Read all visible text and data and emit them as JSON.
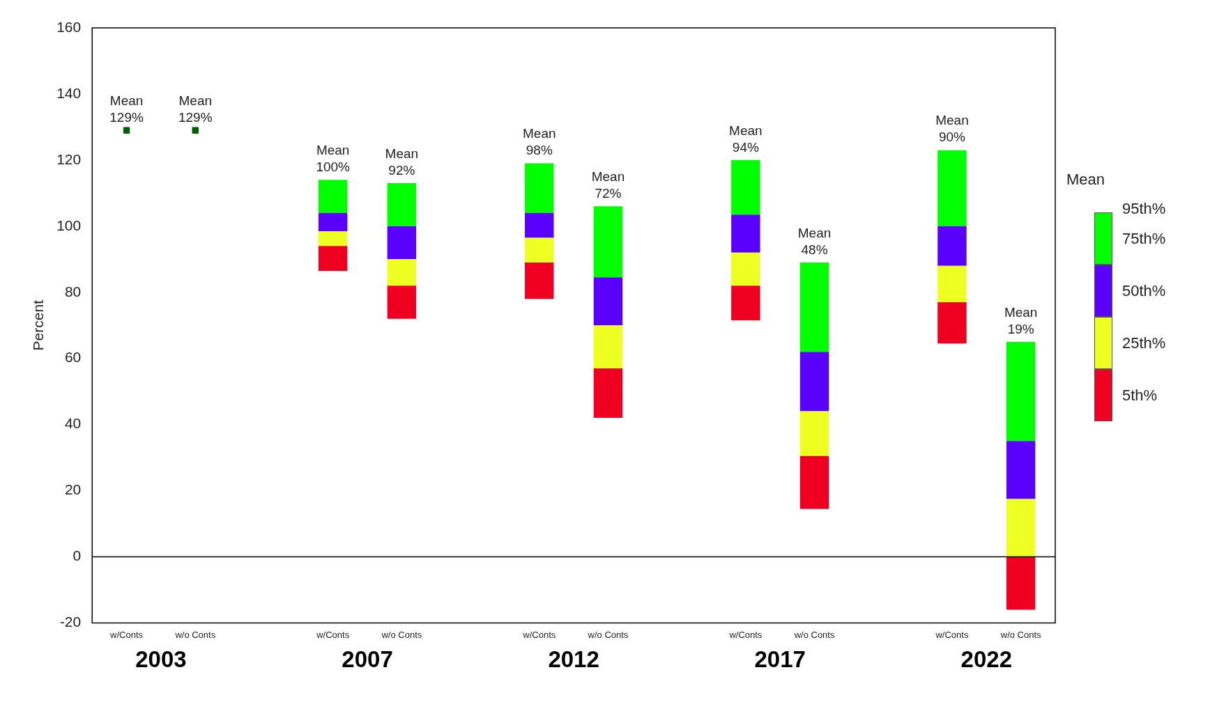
{
  "chart_data": {
    "type": "bar",
    "ylabel": "Percent",
    "legend_title": "Mean",
    "categories": [
      "w/Conts",
      "w/o Conts",
      null,
      "w/Conts",
      "w/o Conts",
      null,
      "w/Conts",
      "w/o Conts",
      null,
      "w/Conts",
      "w/o Conts",
      null,
      "w/Conts",
      "w/o Conts"
    ],
    "series": [
      {
        "name": "5th%",
        "color": "#f00020",
        "base": [
          null,
          null,
          null,
          86.5,
          72,
          null,
          78,
          42,
          null,
          71.5,
          14.5,
          null,
          64.5,
          -16
        ],
        "values": [
          null,
          null,
          null,
          7.5,
          10,
          null,
          11,
          15,
          null,
          10.5,
          16,
          null,
          12.5,
          16
        ]
      },
      {
        "name": "25th%",
        "color": "#eeff22",
        "base": [
          null,
          null,
          null,
          94,
          82,
          null,
          89,
          57,
          null,
          82,
          30.5,
          null,
          77,
          0
        ],
        "values": [
          null,
          null,
          null,
          4.5,
          8,
          null,
          7.5,
          13,
          null,
          10,
          13.5,
          null,
          11,
          17.5
        ]
      },
      {
        "name": "50th%",
        "color": "#5a00ff",
        "base": [
          null,
          null,
          null,
          98.5,
          90,
          null,
          96.5,
          70,
          null,
          92,
          44,
          null,
          88,
          17.5
        ],
        "values": [
          null,
          null,
          null,
          5.5,
          10,
          null,
          7.5,
          14.5,
          null,
          11.5,
          18,
          null,
          12,
          17.5
        ]
      },
      {
        "name": "75th%",
        "color": "#00ff00",
        "base": [
          null,
          null,
          null,
          104,
          100,
          null,
          104,
          84.5,
          null,
          103.5,
          62,
          null,
          100,
          35
        ],
        "values": [
          null,
          null,
          null,
          10,
          13,
          null,
          15,
          21.5,
          null,
          16.5,
          27,
          null,
          23,
          30
        ]
      },
      {
        "type": "scatter",
        "marker": "square",
        "color": "#006000",
        "values": [
          129,
          129,
          null,
          null,
          null,
          null,
          null,
          null,
          null,
          null,
          null,
          null,
          null,
          null
        ],
        "value_labels": [
          "Mean\n129%",
          "Mean\n129%",
          null,
          "Mean\n100%",
          "Mean\n92%",
          null,
          "Mean\n98%",
          "Mean\n72%",
          null,
          "Mean\n94%",
          "Mean\n48%",
          null,
          "Mean\n90%",
          "Mean\n19%"
        ]
      }
    ],
    "ylim": [
      -20,
      160
    ],
    "yticks": [
      -20,
      0,
      20,
      40,
      60,
      80,
      100,
      120,
      140,
      160
    ],
    "ref_lines": [
      {
        "axis": "y",
        "value": 0,
        "color": "#000000"
      }
    ],
    "annotations": [
      "2003",
      "2007",
      "2012",
      "2017",
      "2022",
      "95th%"
    ],
    "legend": "right"
  }
}
